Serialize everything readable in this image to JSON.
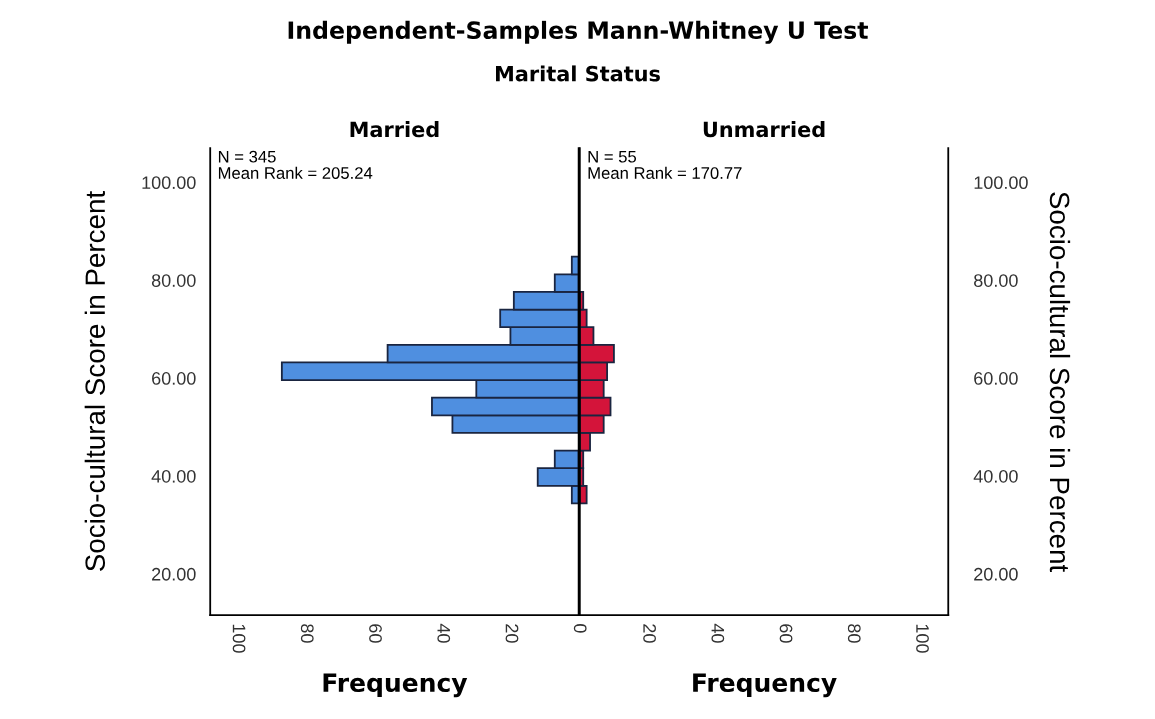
{
  "chart_data": [
    {
      "type": "other",
      "title": "Independent-Samples Mann-Whitney U Test",
      "subtitle": "Marital Status"
    },
    {
      "type": "histogram",
      "orientation": "horizontal",
      "title": "Married",
      "xlabel": "Frequency",
      "ylabel": "Socio-cultural Score in Percent",
      "annotations": [
        "N = 345",
        "Mean Rank = 205.24"
      ],
      "bins": [
        34.4,
        38.0,
        41.6,
        45.2,
        48.8,
        52.4,
        56.0,
        59.6,
        63.2,
        66.8,
        70.4,
        74.0,
        77.6,
        81.2,
        84.8
      ],
      "values": [
        2,
        12,
        7,
        null,
        37,
        43,
        30,
        87,
        56,
        20,
        23,
        19,
        7,
        2
      ],
      "color": "#4f8fe0",
      "xlim": [
        108,
        0
      ],
      "xticks": [
        100,
        80,
        60,
        40,
        20,
        0
      ],
      "ylim": [
        11.6,
        107
      ],
      "yticks": [
        {
          "value": 20,
          "label": "20.00"
        },
        {
          "value": 40,
          "label": "40.00"
        },
        {
          "value": 60,
          "label": "60.00"
        },
        {
          "value": 80,
          "label": "80.00"
        },
        {
          "value": 100,
          "label": "100.00"
        }
      ]
    },
    {
      "type": "histogram",
      "orientation": "horizontal",
      "title": "Unmarried",
      "xlabel": "Frequency",
      "ylabel": "Socio-cultural Score in Percent",
      "annotations": [
        "N = 55",
        "Mean Rank = 170.77"
      ],
      "bins": [
        34.4,
        38.0,
        41.6,
        45.2,
        48.8,
        52.4,
        56.0,
        59.6,
        63.2,
        66.8,
        70.4,
        74.0,
        77.6
      ],
      "values": [
        2,
        1,
        1,
        3,
        7,
        9,
        7,
        8,
        10,
        4,
        2,
        1
      ],
      "color": "#d4143a",
      "xlim": [
        0,
        108
      ],
      "xticks": [
        20,
        40,
        60,
        80,
        100
      ],
      "ylim": [
        11.6,
        107
      ],
      "yticks": [
        {
          "value": 20,
          "label": "20.00"
        },
        {
          "value": 40,
          "label": "40.00"
        },
        {
          "value": 60,
          "label": "60.00"
        },
        {
          "value": 80,
          "label": "80.00"
        },
        {
          "value": 100,
          "label": "100.00"
        }
      ]
    }
  ]
}
